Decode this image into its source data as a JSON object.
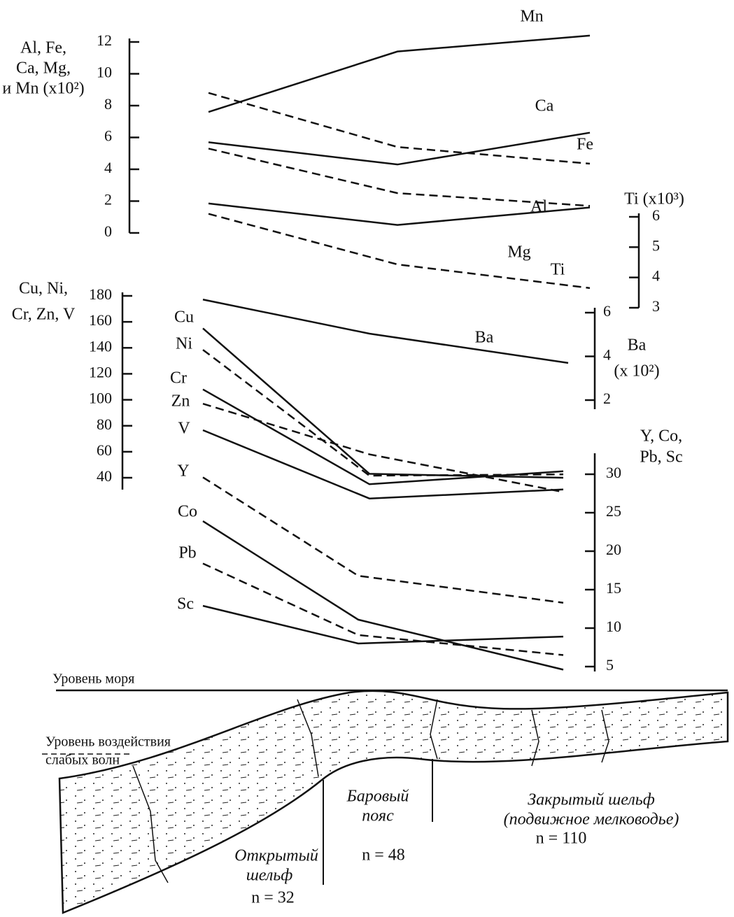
{
  "chart_data": [
    {
      "type": "line",
      "ylabel": [
        "Al, Fe,",
        "Ca, Mg,",
        "и Mn (x10²)"
      ],
      "ylim": [
        0,
        12
      ],
      "yticks": [
        0,
        2,
        4,
        6,
        8,
        10,
        12
      ],
      "y2label": [
        "Ti (x10³)"
      ],
      "y2lim": [
        3,
        6
      ],
      "y2ticks": [
        3,
        4,
        5,
        6
      ],
      "series": [
        {
          "name": "Mn",
          "color": "#111111",
          "dashed": false,
          "values": [
            7.6,
            11.4,
            12.4
          ]
        },
        {
          "name": "Ca",
          "color": "#111111",
          "dashed": true,
          "values": [
            8.8,
            5.4,
            4.35
          ]
        },
        {
          "name": "Fe",
          "color": "#111111",
          "dashed": false,
          "values": [
            5.7,
            4.3,
            6.3
          ]
        },
        {
          "name": "Mg",
          "color": "#111111",
          "dashed": true,
          "values": [
            5.3,
            2.5,
            1.7
          ]
        },
        {
          "name": "Al",
          "color": "#111111",
          "dashed": false,
          "values": [
            1.85,
            0.5,
            1.6
          ]
        },
        {
          "name": "Ti",
          "color": "#111111",
          "dashed": true,
          "axis": "y2",
          "values": [
            6.1,
            4.43,
            3.65
          ]
        }
      ]
    },
    {
      "type": "line",
      "ylabel": [
        "Cu, Ni,",
        "Cr, Zn, V"
      ],
      "ylim": [
        40,
        180
      ],
      "yticks": [
        40,
        60,
        80,
        100,
        120,
        140,
        160,
        180
      ],
      "y2label": [
        "Ba",
        "(x 10²)"
      ],
      "y2lim": [
        2,
        6
      ],
      "y2ticks": [
        2,
        4,
        6
      ],
      "series": [
        {
          "name": "Cu",
          "color": "#111111",
          "dashed": false,
          "values": [
            155,
            43,
            40
          ]
        },
        {
          "name": "Ni",
          "color": "#111111",
          "dashed": true,
          "values": [
            138.5,
            41.6,
            42.6
          ]
        },
        {
          "name": "Cr",
          "color": "#111111",
          "dashed": false,
          "values": [
            108,
            35,
            45
          ]
        },
        {
          "name": "Zn",
          "color": "#111111",
          "dashed": true,
          "values": [
            97,
            58,
            29
          ]
        },
        {
          "name": "V",
          "color": "#111111",
          "dashed": false,
          "values": [
            76.6,
            24,
            31
          ]
        },
        {
          "name": "Ba",
          "color": "#111111",
          "dashed": false,
          "axis": "y2",
          "values": [
            6.6,
            5.04,
            3.7
          ]
        }
      ]
    },
    {
      "type": "line",
      "ylabel": [
        "Y, Co,",
        "Pb, Sc"
      ],
      "ylim": [
        5,
        30
      ],
      "yticks": [
        5,
        10,
        15,
        20,
        25,
        30
      ],
      "series": [
        {
          "name": "Y",
          "color": "#111111",
          "dashed": true,
          "values": [
            29.6,
            16.8,
            13.3
          ]
        },
        {
          "name": "Co",
          "color": "#111111",
          "dashed": false,
          "values": [
            23.9,
            11.1,
            4.6
          ]
        },
        {
          "name": "Pb",
          "color": "#111111",
          "dashed": true,
          "values": [
            18.4,
            9.1,
            6.5
          ]
        },
        {
          "name": "Sc",
          "color": "#111111",
          "dashed": false,
          "values": [
            12.9,
            8.0,
            8.9
          ]
        }
      ]
    }
  ],
  "cross_section": {
    "sea_level": "Уровень моря",
    "wave_base": [
      "Уровень воздействия",
      "слабых волн"
    ],
    "zones": [
      {
        "name": [
          "Открытый",
          "шельф"
        ],
        "n": "n = 32"
      },
      {
        "name": [
          "Баровый",
          "пояс"
        ],
        "n": "n = 48"
      },
      {
        "name": [
          "Закрытый шельф",
          "(подвижное мелководье)"
        ],
        "n": "n = 110"
      }
    ]
  }
}
